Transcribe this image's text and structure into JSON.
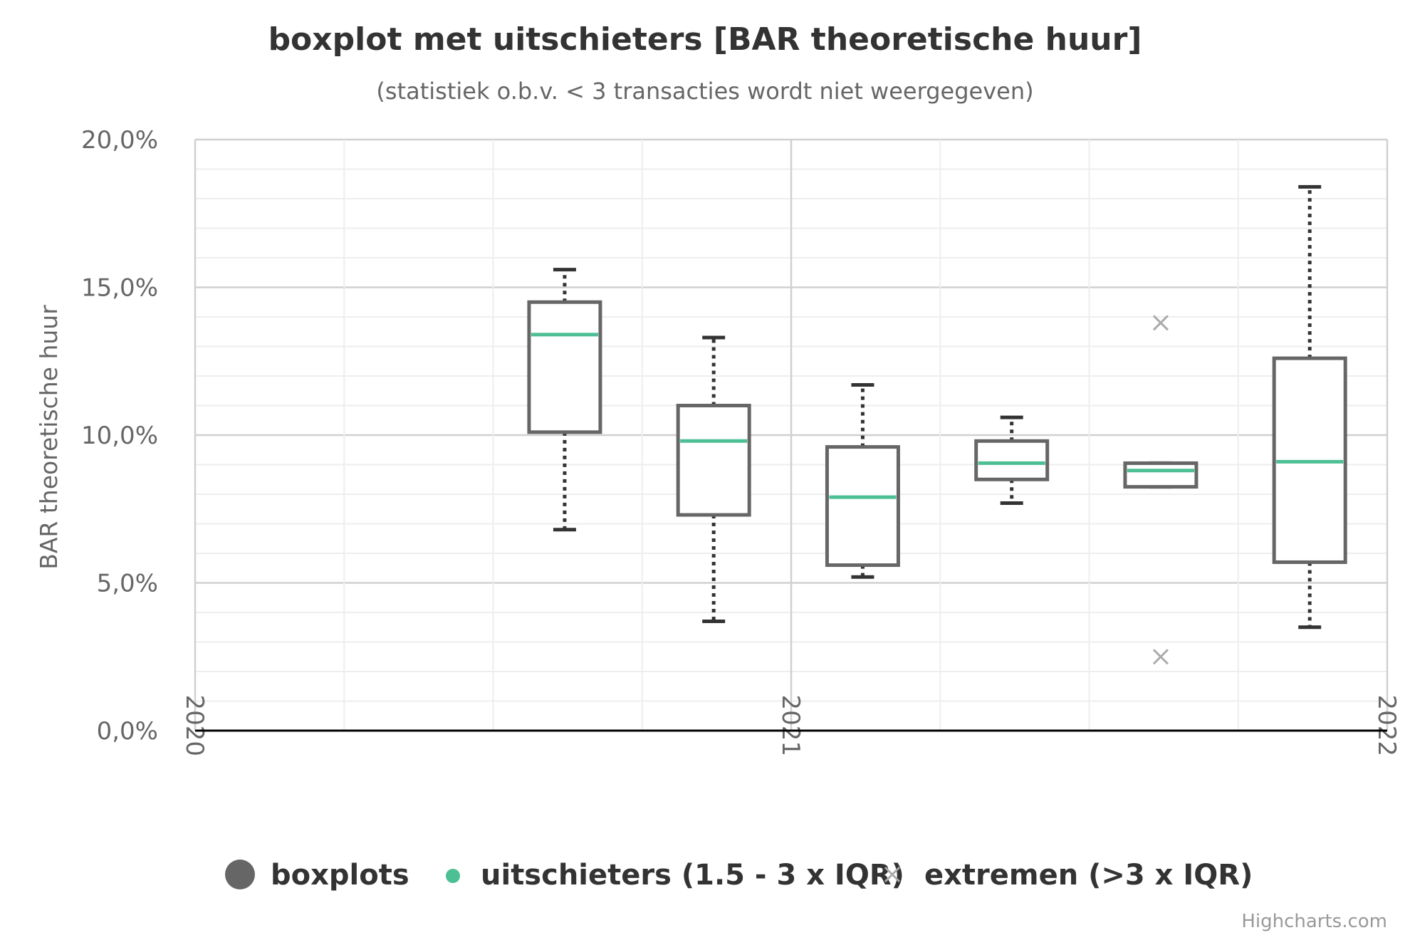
{
  "chart_data": {
    "type": "boxplot",
    "title": "boxplot met uitschieters [BAR theoretische huur]",
    "subtitle": "(statistiek o.b.v. < 3 transacties wordt niet weergegeven)",
    "ylabel": "BAR theoretische huur",
    "ylim": [
      0,
      20
    ],
    "yticks": [
      "0,0%",
      "5,0%",
      "10,0%",
      "15,0%",
      "20,0%"
    ],
    "ytick_values": [
      0,
      5,
      10,
      15,
      20
    ],
    "xlim": [
      2020.0,
      2022.0
    ],
    "xticks": [
      "2020",
      "2021",
      "2022"
    ],
    "xtick_values": [
      2020.0,
      2021.0,
      2022.0
    ],
    "grid": true,
    "legend_position": "bottom",
    "series": [
      {
        "name": "boxplots",
        "type": "boxplot",
        "color": "#666666",
        "median_color": "#4dbf94",
        "boxes": [
          {
            "x": 2020.62,
            "low": 6.8,
            "q1": 10.1,
            "median": 13.4,
            "q3": 14.5,
            "high": 15.6
          },
          {
            "x": 2020.87,
            "low": 3.7,
            "q1": 7.3,
            "median": 9.8,
            "q3": 11.0,
            "high": 13.3
          },
          {
            "x": 2021.12,
            "low": 5.2,
            "q1": 5.6,
            "median": 7.9,
            "q3": 9.6,
            "high": 11.7
          },
          {
            "x": 2021.37,
            "low": 7.7,
            "q1": 8.5,
            "median": 9.05,
            "q3": 9.8,
            "high": 10.6
          },
          {
            "x": 2021.62,
            "low": 8.25,
            "q1": 8.25,
            "median": 8.8,
            "q3": 9.05,
            "high": 9.05
          },
          {
            "x": 2021.87,
            "low": 3.5,
            "q1": 5.7,
            "median": 9.1,
            "q3": 12.6,
            "high": 18.4
          }
        ]
      },
      {
        "name": "uitschieters (1.5 - 3 x IQR)",
        "type": "scatter",
        "color": "#4dbf94",
        "points": []
      },
      {
        "name": "extremen (>3 x IQR)",
        "type": "scatter",
        "color": "#aaaaaa",
        "points": [
          {
            "x": 2021.62,
            "y": 13.8
          },
          {
            "x": 2021.62,
            "y": 2.5
          }
        ]
      }
    ],
    "credit": "Highcharts.com"
  }
}
